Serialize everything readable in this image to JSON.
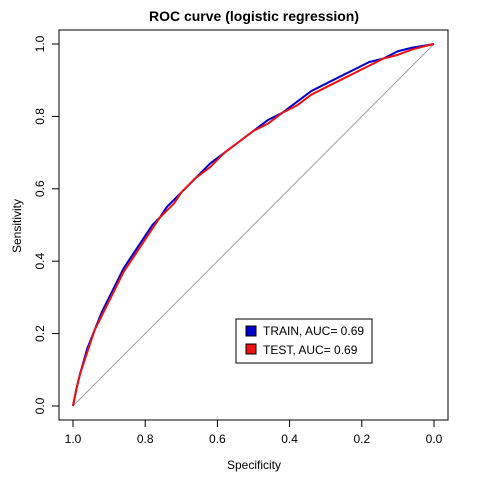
{
  "chart_data": {
    "type": "line",
    "title": "ROC curve (logistic regression)",
    "xlabel": "Specificity",
    "ylabel": "Sensitivity",
    "xlim": [
      1.0,
      0.0
    ],
    "ylim": [
      0.0,
      1.0
    ],
    "xticks": [
      "1.0",
      "0.8",
      "0.6",
      "0.4",
      "0.2",
      "0.0"
    ],
    "yticks": [
      "0.0",
      "0.2",
      "0.4",
      "0.6",
      "0.8",
      "1.0"
    ],
    "xtick_values": [
      1.0,
      0.8,
      0.6,
      0.4,
      0.2,
      0.0
    ],
    "ytick_values": [
      0.0,
      0.2,
      0.4,
      0.6,
      0.8,
      1.0
    ],
    "grid": false,
    "legend_position": "bottom-right",
    "reference_line": {
      "from": [
        1.0,
        0.0
      ],
      "to": [
        0.0,
        1.0
      ],
      "color": "#a0a0a0"
    },
    "series": [
      {
        "name": "TRAIN, AUC= 0.69",
        "color": "#0000cc",
        "x": [
          1.0,
          0.99,
          0.98,
          0.96,
          0.94,
          0.92,
          0.9,
          0.88,
          0.86,
          0.84,
          0.82,
          0.8,
          0.78,
          0.76,
          0.74,
          0.72,
          0.7,
          0.66,
          0.62,
          0.58,
          0.54,
          0.5,
          0.46,
          0.42,
          0.38,
          0.34,
          0.3,
          0.26,
          0.22,
          0.18,
          0.14,
          0.1,
          0.06,
          0.03,
          0.0
        ],
        "y": [
          0.0,
          0.05,
          0.09,
          0.16,
          0.21,
          0.26,
          0.3,
          0.34,
          0.38,
          0.41,
          0.44,
          0.47,
          0.5,
          0.52,
          0.55,
          0.57,
          0.59,
          0.63,
          0.67,
          0.7,
          0.73,
          0.76,
          0.79,
          0.81,
          0.84,
          0.87,
          0.89,
          0.91,
          0.93,
          0.95,
          0.96,
          0.98,
          0.99,
          0.995,
          1.0
        ]
      },
      {
        "name": "TEST, AUC= 0.69",
        "color": "#ee1111",
        "x": [
          1.0,
          0.99,
          0.98,
          0.96,
          0.94,
          0.92,
          0.9,
          0.88,
          0.86,
          0.84,
          0.82,
          0.8,
          0.78,
          0.76,
          0.74,
          0.72,
          0.7,
          0.66,
          0.62,
          0.58,
          0.54,
          0.5,
          0.46,
          0.42,
          0.38,
          0.34,
          0.3,
          0.26,
          0.22,
          0.18,
          0.14,
          0.1,
          0.06,
          0.03,
          0.0
        ],
        "y": [
          0.0,
          0.05,
          0.09,
          0.15,
          0.21,
          0.25,
          0.29,
          0.33,
          0.37,
          0.4,
          0.43,
          0.46,
          0.49,
          0.52,
          0.54,
          0.56,
          0.59,
          0.63,
          0.66,
          0.7,
          0.73,
          0.76,
          0.78,
          0.81,
          0.83,
          0.86,
          0.88,
          0.9,
          0.92,
          0.94,
          0.96,
          0.97,
          0.985,
          0.993,
          1.0
        ]
      }
    ]
  }
}
